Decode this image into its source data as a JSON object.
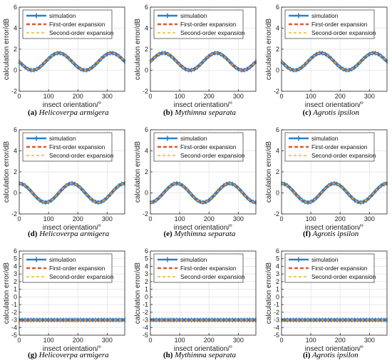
{
  "legend_labels": [
    "simulation",
    "First-order expansion",
    "Second-order expansion"
  ],
  "colors": {
    "simulation": "#2d7fc7",
    "first_order": "#e2572a",
    "second_order": "#eeb521",
    "grid": "#e3e3e3",
    "axis": "#262626"
  },
  "chart_data": [
    {
      "id": "a",
      "type": "line",
      "caption_letter": "(a)",
      "caption_species": "Helicoverpa armigera",
      "xlabel": "insect orientation/°",
      "ylabel": "calculation error/dB",
      "xlim": [
        0,
        360
      ],
      "ylim": [
        -2,
        6
      ],
      "xticks": [
        0,
        100,
        200,
        300
      ],
      "yticks": [
        -2,
        0,
        2,
        4,
        6
      ],
      "legend": "top-left",
      "grid": true,
      "model": {
        "mean": 0.82,
        "amplitude": 0.82,
        "period_deg": 180,
        "phase_deg": 90
      }
    },
    {
      "id": "b",
      "type": "line",
      "caption_letter": "(b)",
      "caption_species": "Mythimna separata",
      "xlabel": "insect orientation/°",
      "ylabel": "calculation error/dB",
      "xlim": [
        0,
        360
      ],
      "ylim": [
        -2,
        6
      ],
      "xticks": [
        0,
        100,
        200,
        300
      ],
      "yticks": [
        -2,
        0,
        2,
        4,
        6
      ],
      "legend": "top-left",
      "grid": true,
      "model": {
        "mean": 0.82,
        "amplitude": 0.82,
        "period_deg": 180,
        "phase_deg": 0
      }
    },
    {
      "id": "c",
      "type": "line",
      "caption_letter": "(c)",
      "caption_species": "Agrotis ipsilon",
      "xlabel": "insect orientation/°",
      "ylabel": "calculation error/dB",
      "xlim": [
        0,
        360
      ],
      "ylim": [
        -2,
        6
      ],
      "xticks": [
        0,
        100,
        200,
        300
      ],
      "yticks": [
        -2,
        0,
        2,
        4,
        6
      ],
      "legend": "top-left",
      "grid": true,
      "model": {
        "mean": 0.82,
        "amplitude": 0.82,
        "period_deg": 180,
        "phase_deg": 90
      }
    },
    {
      "id": "d",
      "type": "line",
      "caption_letter": "(d)",
      "caption_species": "Helicoverpa armigera",
      "xlabel": "insect orientation/°",
      "ylabel": "calculation error/dB",
      "xlim": [
        0,
        360
      ],
      "ylim": [
        -2,
        6
      ],
      "xticks": [
        0,
        100,
        200,
        300
      ],
      "yticks": [
        -2,
        0,
        2,
        4,
        6
      ],
      "legend": "top-left",
      "grid": true,
      "model": {
        "mean": 0.0,
        "amplitude": 0.9,
        "period_deg": 180,
        "phase_deg": 135
      }
    },
    {
      "id": "e",
      "type": "line",
      "caption_letter": "(e)",
      "caption_species": "Mythimna separata",
      "xlabel": "insect orientation/°",
      "ylabel": "calculation error/dB",
      "xlim": [
        0,
        360
      ],
      "ylim": [
        -2,
        6
      ],
      "xticks": [
        0,
        100,
        200,
        300
      ],
      "yticks": [
        -2,
        0,
        2,
        4,
        6
      ],
      "legend": "top-left",
      "grid": true,
      "model": {
        "mean": 0.0,
        "amplitude": 0.9,
        "period_deg": 180,
        "phase_deg": 45
      }
    },
    {
      "id": "f",
      "type": "line",
      "caption_letter": "(f)",
      "caption_species": "Agrotis ipsilon",
      "xlabel": "insect orientation/°",
      "ylabel": "calculation error/dB",
      "xlim": [
        0,
        360
      ],
      "ylim": [
        -2,
        6
      ],
      "xticks": [
        0,
        100,
        200,
        300
      ],
      "yticks": [
        -2,
        0,
        2,
        4,
        6
      ],
      "legend": "top-left",
      "grid": true,
      "model": {
        "mean": 0.0,
        "amplitude": 0.9,
        "period_deg": 180,
        "phase_deg": 135
      }
    },
    {
      "id": "g",
      "type": "line",
      "caption_letter": "(g)",
      "caption_species": "Helicoverpa armigera",
      "xlabel": "insect orientation/°",
      "ylabel": "calculation error/dB",
      "xlim": [
        0,
        360
      ],
      "ylim": [
        -5,
        6
      ],
      "xticks": [
        0,
        100,
        200,
        300
      ],
      "yticks": [
        -5,
        -4,
        -3,
        -2,
        -1,
        0,
        1,
        2,
        3,
        4,
        5,
        6
      ],
      "legend": "top-left",
      "grid": true,
      "model": {
        "mean": -3.01,
        "amplitude": 0,
        "period_deg": 180,
        "phase_deg": 0
      }
    },
    {
      "id": "h",
      "type": "line",
      "caption_letter": "(h)",
      "caption_species": "Mythimna separata",
      "xlabel": "insect orientation/°",
      "ylabel": "calculation error/dB",
      "xlim": [
        0,
        360
      ],
      "ylim": [
        -5,
        6
      ],
      "xticks": [
        0,
        100,
        200,
        300
      ],
      "yticks": [
        -5,
        -4,
        -3,
        -2,
        -1,
        0,
        1,
        2,
        3,
        4,
        5,
        6
      ],
      "legend": "top-left",
      "grid": true,
      "model": {
        "mean": -3.01,
        "amplitude": 0,
        "period_deg": 180,
        "phase_deg": 0
      }
    },
    {
      "id": "i",
      "type": "line",
      "caption_letter": "(i)",
      "caption_species": "Agrotis ipsilon",
      "xlabel": "insect orientation/°",
      "ylabel": "calculation error/dB",
      "xlim": [
        0,
        360
      ],
      "ylim": [
        -5,
        6
      ],
      "xticks": [
        0,
        100,
        200,
        300
      ],
      "yticks": [
        -5,
        -4,
        -3,
        -2,
        -1,
        0,
        1,
        2,
        3,
        4,
        5,
        6
      ],
      "legend": "top-left",
      "grid": true,
      "model": {
        "mean": -3.01,
        "amplitude": 0,
        "period_deg": 180,
        "phase_deg": 0
      }
    }
  ]
}
